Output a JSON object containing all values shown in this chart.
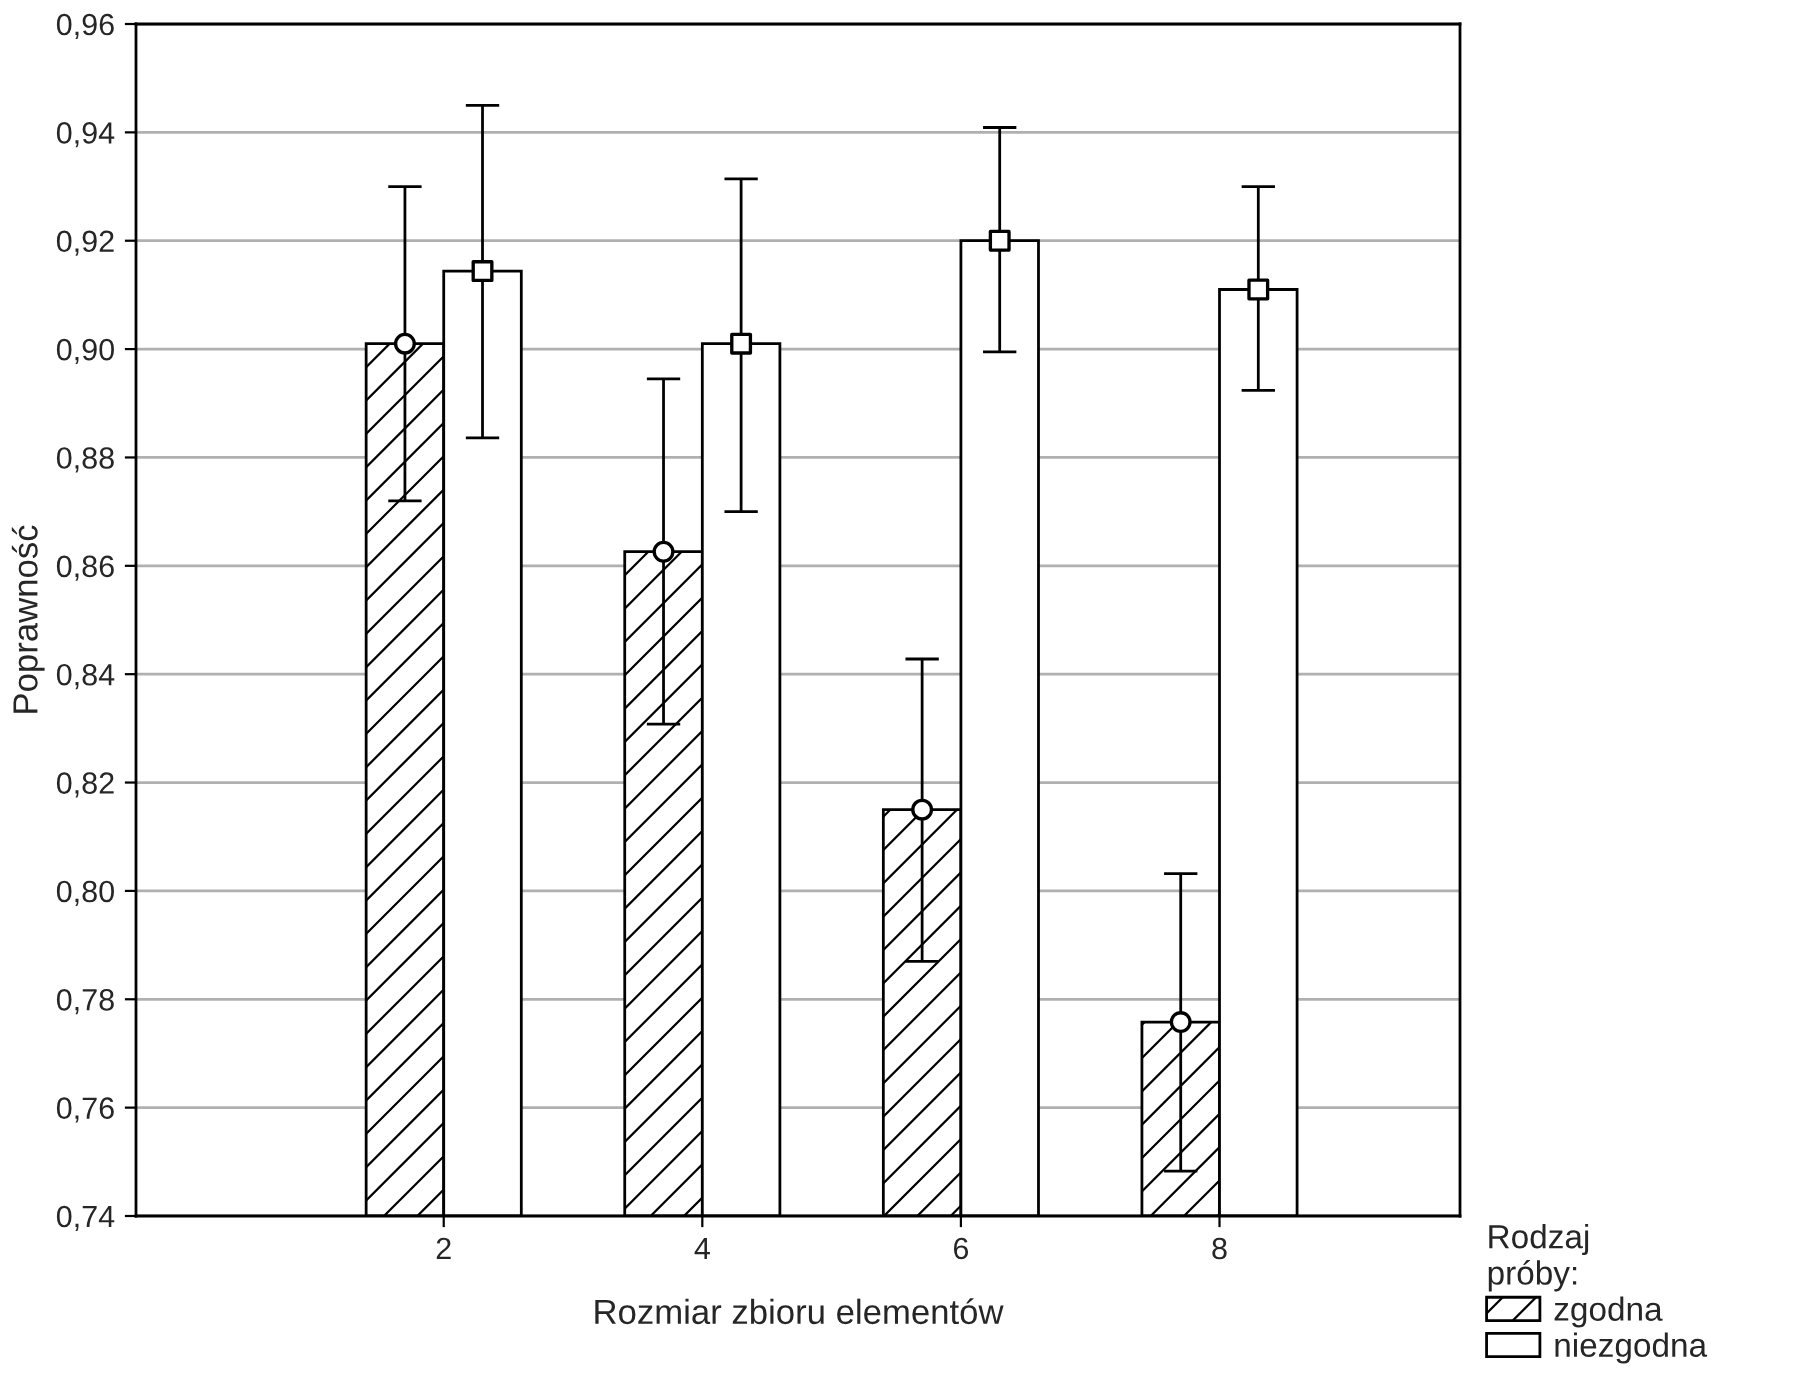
{
  "chart_data": {
    "type": "bar",
    "xlabel": "Rozmiar zbioru elementów",
    "ylabel": "Poprawność",
    "legend_title": "Rodzaj\npróby:",
    "categories": [
      "2",
      "4",
      "6",
      "8"
    ],
    "series": [
      {
        "name": "zgodna",
        "color": "#000000",
        "values": [
          0.901,
          0.8626,
          0.815,
          0.7758
        ],
        "errors": [
          [
            0.872,
            0.93
          ],
          [
            0.8308,
            0.8945
          ],
          [
            0.787,
            0.8428
          ],
          [
            0.7483,
            0.8032
          ]
        ]
      },
      {
        "name": "niezgodna",
        "color": "#ffffff",
        "values": [
          0.9144,
          0.901,
          0.92,
          0.911
        ],
        "errors": [
          [
            0.8836,
            0.945
          ],
          [
            0.87,
            0.9314
          ],
          [
            0.8995,
            0.9409
          ],
          [
            0.8924,
            0.93
          ]
        ]
      },
      {
        "type": "scatter",
        "color": "#ffffff",
        "marker": "circle",
        "x": [
          "2",
          "4",
          "6",
          "8"
        ],
        "values": [
          0.901,
          0.8626,
          0.815,
          0.7758
        ]
      },
      {
        "type": "scatter",
        "color": "#ffffff",
        "marker": "square",
        "x": [
          "2",
          "4",
          "6",
          "8"
        ],
        "values": [
          0.9144,
          0.901,
          0.92,
          0.911
        ]
      }
    ],
    "ylim": [
      0.74,
      0.96
    ],
    "yticks": [
      {
        "value": 0.74,
        "label": "0,74"
      },
      {
        "value": 0.76,
        "label": "0,76"
      },
      {
        "value": 0.78,
        "label": "0,78"
      },
      {
        "value": 0.8,
        "label": "0,80"
      },
      {
        "value": 0.82,
        "label": "0,82"
      },
      {
        "value": 0.84,
        "label": "0,84"
      },
      {
        "value": 0.86,
        "label": "0,86"
      },
      {
        "value": 0.88,
        "label": "0,88"
      },
      {
        "value": 0.9,
        "label": "0,90"
      },
      {
        "value": 0.92,
        "label": "0,92"
      },
      {
        "value": 0.94,
        "label": "0,94"
      },
      {
        "value": 0.96,
        "label": "0,96"
      }
    ],
    "grid": "y",
    "legend": "bottom right"
  }
}
